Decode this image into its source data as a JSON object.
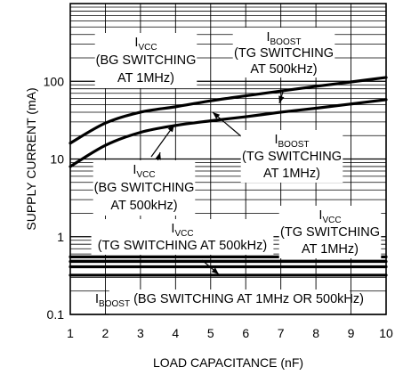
{
  "chart_data": {
    "type": "line",
    "title": "",
    "xlabel": "LOAD CAPACITANCE (nF)",
    "ylabel": "SUPPLY CURRENT (mA)",
    "x_scale": "linear",
    "y_scale": "log",
    "xlim": [
      1,
      10
    ],
    "ylim": [
      0.1,
      1000
    ],
    "grid": true,
    "x_ticks": [
      "1",
      "2",
      "3",
      "4",
      "5",
      "6",
      "7",
      "8",
      "9",
      "10"
    ],
    "y_ticks": [
      {
        "value": 0.1,
        "label": "0.1"
      },
      {
        "value": 1,
        "label": "1"
      },
      {
        "value": 10,
        "label": "10"
      },
      {
        "value": 100,
        "label": "100"
      }
    ],
    "series": [
      {
        "id": "icc_bg_1mhz",
        "x": [
          1,
          2,
          3,
          4,
          5,
          6,
          7,
          8,
          9,
          10
        ],
        "y": [
          16,
          29,
          40,
          47,
          56,
          65,
          75,
          86,
          98,
          112
        ]
      },
      {
        "id": "icc_bg_500khz",
        "x": [
          1,
          2,
          3,
          4,
          5,
          6,
          7,
          8,
          9,
          10
        ],
        "y": [
          8,
          15,
          22,
          27,
          31,
          35,
          40,
          45,
          51,
          58
        ]
      },
      {
        "id": "iboost_tg_500khz",
        "x": [
          1,
          10
        ],
        "y": [
          0.55,
          0.55
        ]
      },
      {
        "id": "icc_tg_1mhz",
        "x": [
          1,
          10
        ],
        "y": [
          0.48,
          0.48
        ]
      },
      {
        "id": "iboost_tg_1mhz",
        "x": [
          1,
          10
        ],
        "y": [
          0.41,
          0.41
        ]
      },
      {
        "id": "iboost_bg",
        "x": [
          1,
          10
        ],
        "y": [
          0.32,
          0.32
        ]
      }
    ],
    "annotations": [
      {
        "id": "a1",
        "main": "I",
        "sub": "VCC",
        "lines": [
          "(BG SWITCHING",
          "AT 1MHz)"
        ],
        "arrow": true
      },
      {
        "id": "a2",
        "main": "I",
        "sub": "BOOST",
        "lines": [
          "(TG SWITCHING",
          "AT 500kHz)"
        ],
        "arrow": true
      },
      {
        "id": "a3",
        "main": "I",
        "sub": "BOOST",
        "lines": [
          "(TG SWITCHING",
          "AT 1MHz)"
        ],
        "arrow": true
      },
      {
        "id": "a4",
        "main": "I",
        "sub": "VCC",
        "lines": [
          "(BG SWITCHING",
          "AT 500kHz)"
        ],
        "arrow": true
      },
      {
        "id": "a5",
        "main": "I",
        "sub": "VCC",
        "lines": [
          "(TG SWITCHING AT 500kHz)"
        ],
        "arrow": true
      },
      {
        "id": "a6",
        "main": "I",
        "sub": "VCC",
        "lines": [
          "(TG SWITCHING",
          "AT 1MHz)"
        ],
        "arrow": true
      },
      {
        "id": "a7",
        "main": "I",
        "sub": "BOOST",
        "lines": [
          "(BG SWITCHING AT 1MHz OR 500kHz)"
        ],
        "arrow": false
      }
    ]
  }
}
